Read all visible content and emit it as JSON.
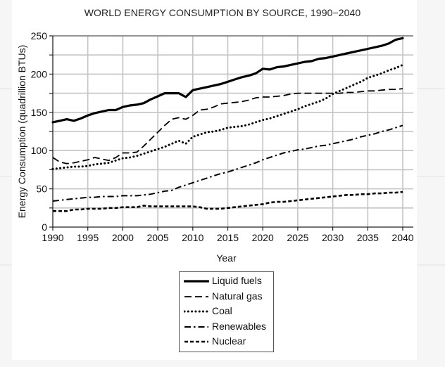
{
  "chart_data": {
    "type": "line",
    "title": "WORLD ENERGY CONSUMPTION BY SOURCE, 1990−2040",
    "xlabel": "Year",
    "ylabel": "Energy Consumption (quadrillion BTUs)",
    "xlim": [
      1990,
      2041.5
    ],
    "ylim": [
      0,
      250
    ],
    "xticks": [
      1990,
      1995,
      2000,
      2005,
      2010,
      2015,
      2020,
      2025,
      2030,
      2035,
      2040
    ],
    "yticks": [
      0,
      50,
      100,
      150,
      200,
      250
    ],
    "yminor_ticks": [
      25,
      75,
      125,
      175,
      225
    ],
    "grid": true,
    "legend_position": "bottom-center",
    "series": [
      {
        "name": "Liquid fuels",
        "style": "solid",
        "points": [
          [
            1990,
            137
          ],
          [
            1991,
            139
          ],
          [
            1992,
            141
          ],
          [
            1993,
            139
          ],
          [
            1994,
            142
          ],
          [
            1995,
            146
          ],
          [
            1996,
            149
          ],
          [
            1997,
            151
          ],
          [
            1998,
            153
          ],
          [
            1999,
            153
          ],
          [
            2000,
            157
          ],
          [
            2001,
            159
          ],
          [
            2002,
            160
          ],
          [
            2003,
            162
          ],
          [
            2004,
            167
          ],
          [
            2005,
            171
          ],
          [
            2006,
            175
          ],
          [
            2007,
            175
          ],
          [
            2008,
            175
          ],
          [
            2009,
            170
          ],
          [
            2010,
            179
          ],
          [
            2011,
            181
          ],
          [
            2012,
            183
          ],
          [
            2013,
            185
          ],
          [
            2014,
            187
          ],
          [
            2015,
            190
          ],
          [
            2016,
            193
          ],
          [
            2017,
            196
          ],
          [
            2018,
            198
          ],
          [
            2019,
            201
          ],
          [
            2020,
            207
          ],
          [
            2021,
            206
          ],
          [
            2022,
            209
          ],
          [
            2023,
            210
          ],
          [
            2024,
            212
          ],
          [
            2025,
            214
          ],
          [
            2026,
            216
          ],
          [
            2027,
            217
          ],
          [
            2028,
            220
          ],
          [
            2029,
            221
          ],
          [
            2030,
            223
          ],
          [
            2031,
            225
          ],
          [
            2032,
            227
          ],
          [
            2033,
            229
          ],
          [
            2034,
            231
          ],
          [
            2035,
            233
          ],
          [
            2036,
            235
          ],
          [
            2037,
            237
          ],
          [
            2038,
            240
          ],
          [
            2039,
            245
          ],
          [
            2040,
            247
          ]
        ]
      },
      {
        "name": "Natural gas",
        "style": "dashed",
        "points": [
          [
            1990,
            91
          ],
          [
            1991,
            85
          ],
          [
            1992,
            83
          ],
          [
            1993,
            84
          ],
          [
            1994,
            86
          ],
          [
            1995,
            88
          ],
          [
            1996,
            91
          ],
          [
            1997,
            89
          ],
          [
            1998,
            87
          ],
          [
            1999,
            91
          ],
          [
            2000,
            97
          ],
          [
            2001,
            97
          ],
          [
            2002,
            98
          ],
          [
            2003,
            106
          ],
          [
            2004,
            115
          ],
          [
            2005,
            124
          ],
          [
            2006,
            133
          ],
          [
            2007,
            141
          ],
          [
            2008,
            143
          ],
          [
            2009,
            141
          ],
          [
            2010,
            146
          ],
          [
            2011,
            153
          ],
          [
            2012,
            154
          ],
          [
            2013,
            157
          ],
          [
            2014,
            161
          ],
          [
            2015,
            162
          ],
          [
            2016,
            163
          ],
          [
            2017,
            164
          ],
          [
            2018,
            166
          ],
          [
            2019,
            169
          ],
          [
            2020,
            170
          ],
          [
            2021,
            170
          ],
          [
            2022,
            171
          ],
          [
            2023,
            172
          ],
          [
            2024,
            174
          ],
          [
            2025,
            175
          ],
          [
            2026,
            175
          ],
          [
            2027,
            175
          ],
          [
            2028,
            175
          ],
          [
            2029,
            175
          ],
          [
            2030,
            175
          ],
          [
            2031,
            175
          ],
          [
            2032,
            176
          ],
          [
            2033,
            176
          ],
          [
            2034,
            177
          ],
          [
            2035,
            178
          ],
          [
            2036,
            178
          ],
          [
            2037,
            179
          ],
          [
            2038,
            180
          ],
          [
            2039,
            180
          ],
          [
            2040,
            181
          ]
        ]
      },
      {
        "name": "Coal",
        "style": "dotted",
        "points": [
          [
            1990,
            76
          ],
          [
            1991,
            77
          ],
          [
            1992,
            78
          ],
          [
            1993,
            79
          ],
          [
            1994,
            79
          ],
          [
            1995,
            80
          ],
          [
            1996,
            82
          ],
          [
            1997,
            83
          ],
          [
            1998,
            84
          ],
          [
            1999,
            87
          ],
          [
            2000,
            90
          ],
          [
            2001,
            91
          ],
          [
            2002,
            93
          ],
          [
            2003,
            96
          ],
          [
            2004,
            99
          ],
          [
            2005,
            102
          ],
          [
            2006,
            105
          ],
          [
            2007,
            109
          ],
          [
            2008,
            113
          ],
          [
            2009,
            109
          ],
          [
            2010,
            118
          ],
          [
            2011,
            121
          ],
          [
            2012,
            124
          ],
          [
            2013,
            125
          ],
          [
            2014,
            127
          ],
          [
            2015,
            130
          ],
          [
            2016,
            131
          ],
          [
            2017,
            132
          ],
          [
            2018,
            134
          ],
          [
            2019,
            137
          ],
          [
            2020,
            140
          ],
          [
            2021,
            142
          ],
          [
            2022,
            145
          ],
          [
            2023,
            148
          ],
          [
            2024,
            151
          ],
          [
            2025,
            154
          ],
          [
            2026,
            158
          ],
          [
            2027,
            161
          ],
          [
            2028,
            164
          ],
          [
            2029,
            168
          ],
          [
            2030,
            174
          ],
          [
            2031,
            178
          ],
          [
            2032,
            182
          ],
          [
            2033,
            186
          ],
          [
            2034,
            190
          ],
          [
            2035,
            195
          ],
          [
            2036,
            198
          ],
          [
            2037,
            201
          ],
          [
            2038,
            205
          ],
          [
            2039,
            208
          ],
          [
            2040,
            212
          ]
        ]
      },
      {
        "name": "Renewables",
        "style": "dash-dot",
        "points": [
          [
            1990,
            34
          ],
          [
            1991,
            35
          ],
          [
            1992,
            36
          ],
          [
            1993,
            37
          ],
          [
            1994,
            38
          ],
          [
            1995,
            39
          ],
          [
            1996,
            39
          ],
          [
            1997,
            40
          ],
          [
            1998,
            40
          ],
          [
            1999,
            40
          ],
          [
            2000,
            41
          ],
          [
            2001,
            41
          ],
          [
            2002,
            41
          ],
          [
            2003,
            42
          ],
          [
            2004,
            43
          ],
          [
            2005,
            45
          ],
          [
            2006,
            47
          ],
          [
            2007,
            48
          ],
          [
            2008,
            52
          ],
          [
            2009,
            55
          ],
          [
            2010,
            58
          ],
          [
            2011,
            61
          ],
          [
            2012,
            64
          ],
          [
            2013,
            67
          ],
          [
            2014,
            70
          ],
          [
            2015,
            72
          ],
          [
            2016,
            75
          ],
          [
            2017,
            78
          ],
          [
            2018,
            81
          ],
          [
            2019,
            84
          ],
          [
            2020,
            88
          ],
          [
            2021,
            91
          ],
          [
            2022,
            94
          ],
          [
            2023,
            97
          ],
          [
            2024,
            99
          ],
          [
            2025,
            101
          ],
          [
            2026,
            102
          ],
          [
            2027,
            104
          ],
          [
            2028,
            106
          ],
          [
            2029,
            107
          ],
          [
            2030,
            109
          ],
          [
            2031,
            111
          ],
          [
            2032,
            113
          ],
          [
            2033,
            115
          ],
          [
            2034,
            118
          ],
          [
            2035,
            120
          ],
          [
            2036,
            122
          ],
          [
            2037,
            125
          ],
          [
            2038,
            127
          ],
          [
            2039,
            130
          ],
          [
            2040,
            133
          ]
        ]
      },
      {
        "name": "Nuclear",
        "style": "short-dashed",
        "points": [
          [
            1990,
            21
          ],
          [
            1991,
            21
          ],
          [
            1992,
            21
          ],
          [
            1993,
            23
          ],
          [
            1994,
            23
          ],
          [
            1995,
            24
          ],
          [
            1996,
            24
          ],
          [
            1997,
            24
          ],
          [
            1998,
            25
          ],
          [
            1999,
            25
          ],
          [
            2000,
            26
          ],
          [
            2001,
            26
          ],
          [
            2002,
            26
          ],
          [
            2003,
            28
          ],
          [
            2004,
            27
          ],
          [
            2005,
            27
          ],
          [
            2006,
            27
          ],
          [
            2007,
            27
          ],
          [
            2008,
            27
          ],
          [
            2009,
            27
          ],
          [
            2010,
            27
          ],
          [
            2011,
            26
          ],
          [
            2012,
            24
          ],
          [
            2013,
            24
          ],
          [
            2014,
            24
          ],
          [
            2015,
            25
          ],
          [
            2016,
            26
          ],
          [
            2017,
            27
          ],
          [
            2018,
            28
          ],
          [
            2019,
            29
          ],
          [
            2020,
            30
          ],
          [
            2021,
            32
          ],
          [
            2022,
            33
          ],
          [
            2023,
            33
          ],
          [
            2024,
            34
          ],
          [
            2025,
            35
          ],
          [
            2026,
            36
          ],
          [
            2027,
            37
          ],
          [
            2028,
            38
          ],
          [
            2029,
            39
          ],
          [
            2030,
            40
          ],
          [
            2031,
            41
          ],
          [
            2032,
            42
          ],
          [
            2033,
            42
          ],
          [
            2034,
            43
          ],
          [
            2035,
            43
          ],
          [
            2036,
            44
          ],
          [
            2037,
            44
          ],
          [
            2038,
            45
          ],
          [
            2039,
            45
          ],
          [
            2040,
            46
          ]
        ]
      }
    ]
  }
}
